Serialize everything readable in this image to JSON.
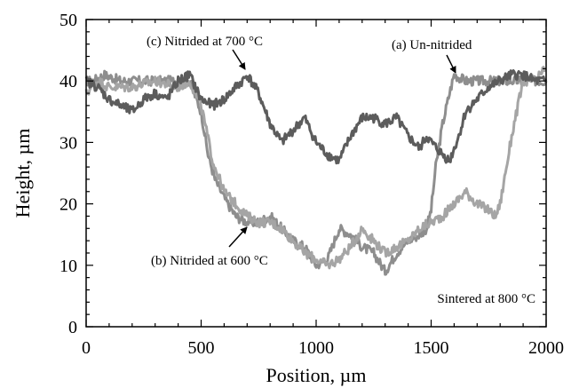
{
  "chart_data": {
    "type": "line",
    "xlabel": "Position, µm",
    "ylabel": "Height, µm",
    "xlim": [
      0,
      2000
    ],
    "ylim": [
      0,
      50
    ],
    "xticks": [
      0,
      500,
      1000,
      1500,
      2000
    ],
    "yticks": [
      0,
      10,
      20,
      30,
      40,
      50
    ],
    "xtick_labels": [
      "0",
      "500",
      "1000",
      "1500",
      "2000"
    ],
    "ytick_labels": [
      "0",
      "10",
      "20",
      "30",
      "40",
      "50"
    ],
    "grid": false,
    "series": [
      {
        "name": "(a) Un-nitrided",
        "color": "#8e8e8e",
        "x": [
          0,
          30,
          80,
          150,
          250,
          350,
          450,
          500,
          530,
          560,
          600,
          650,
          700,
          750,
          800,
          850,
          900,
          950,
          1000,
          1050,
          1100,
          1150,
          1200,
          1250,
          1300,
          1350,
          1400,
          1450,
          1480,
          1500,
          1520,
          1550,
          1580,
          1600,
          1650,
          1700,
          1750,
          1800,
          1850,
          1900,
          1950,
          2000
        ],
        "y": [
          40,
          40,
          41,
          40,
          40,
          40,
          40,
          35,
          28,
          24,
          21,
          18,
          17,
          17,
          18,
          16,
          14,
          13,
          10,
          11,
          16,
          15,
          13,
          12,
          9,
          12,
          14,
          15,
          16,
          19,
          26,
          33,
          38,
          41,
          40,
          40,
          40,
          40,
          40,
          40,
          40,
          40
        ]
      },
      {
        "name": "(b) Nitrided at 600 °C",
        "color": "#a5a5a5",
        "x": [
          0,
          50,
          100,
          200,
          300,
          400,
          450,
          500,
          550,
          600,
          650,
          700,
          750,
          800,
          850,
          900,
          950,
          1000,
          1050,
          1100,
          1150,
          1200,
          1250,
          1300,
          1350,
          1400,
          1450,
          1500,
          1550,
          1600,
          1650,
          1700,
          1750,
          1780,
          1800,
          1850,
          1900,
          1950,
          2000
        ],
        "y": [
          38,
          40,
          39,
          39,
          40,
          39,
          40,
          36,
          27,
          22,
          20,
          18,
          17,
          17,
          16,
          14,
          12,
          11,
          10,
          11,
          13,
          16,
          14,
          12,
          13,
          14,
          16,
          17,
          18,
          20,
          22,
          20,
          19,
          18,
          20,
          31,
          40,
          40,
          42
        ]
      },
      {
        "name": "(c) Nitrided at 700 °C",
        "color": "#5c5c5c",
        "x": [
          0,
          50,
          100,
          150,
          200,
          250,
          300,
          350,
          400,
          450,
          500,
          550,
          600,
          650,
          680,
          700,
          750,
          800,
          850,
          900,
          950,
          1000,
          1050,
          1100,
          1150,
          1200,
          1250,
          1300,
          1350,
          1400,
          1450,
          1480,
          1500,
          1550,
          1580,
          1620,
          1650,
          1700,
          1750,
          1800,
          1850,
          1900,
          1950,
          2000
        ],
        "y": [
          40,
          39,
          37,
          36,
          35,
          37,
          38,
          37,
          40,
          41,
          37,
          36,
          37,
          39,
          40,
          41,
          38,
          33,
          30,
          32,
          34,
          30,
          28,
          27,
          31,
          34,
          34,
          33,
          34,
          31,
          29,
          31,
          30,
          28,
          27,
          31,
          35,
          37,
          39,
          40,
          41,
          41,
          40,
          40
        ]
      }
    ],
    "annotations": [
      {
        "text": "(c) Nitrided at 700 °C",
        "points_to": [
          690,
          41
        ]
      },
      {
        "text": "(a) Un-nitrided",
        "points_to": [
          1600,
          41
        ]
      },
      {
        "text": "(b) Nitrided at 600 °C",
        "points_to": [
          670,
          17.5
        ]
      },
      {
        "text": "Sintered at 800 °C"
      }
    ]
  }
}
